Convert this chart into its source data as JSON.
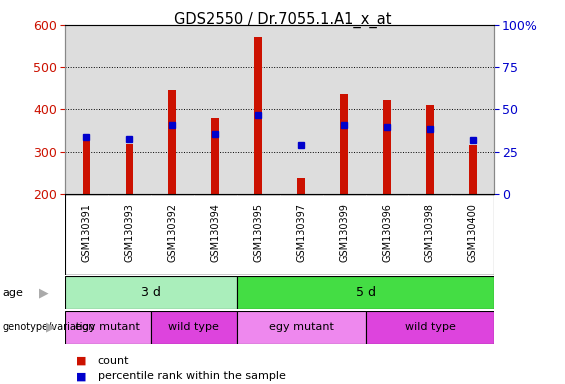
{
  "title": "GDS2550 / Dr.7055.1.A1_x_at",
  "samples": [
    "GSM130391",
    "GSM130393",
    "GSM130392",
    "GSM130394",
    "GSM130395",
    "GSM130397",
    "GSM130399",
    "GSM130396",
    "GSM130398",
    "GSM130400"
  ],
  "counts": [
    325,
    318,
    447,
    380,
    572,
    237,
    437,
    422,
    410,
    316
  ],
  "percentile_ranks": [
    335,
    330,
    362,
    342,
    388,
    316,
    362,
    358,
    354,
    328
  ],
  "y_min": 200,
  "y_max": 600,
  "y_ticks": [
    200,
    300,
    400,
    500,
    600
  ],
  "right_y_labels": [
    "0",
    "25",
    "50",
    "75",
    "100%"
  ],
  "bar_color": "#cc1100",
  "dot_color": "#0000cc",
  "age_groups": [
    {
      "label": "3 d",
      "start": 0,
      "end": 4,
      "color": "#aaeebb"
    },
    {
      "label": "5 d",
      "start": 4,
      "end": 10,
      "color": "#44dd44"
    }
  ],
  "genotype_groups": [
    {
      "label": "egy mutant",
      "start": 0,
      "end": 2,
      "color": "#ee88ee"
    },
    {
      "label": "wild type",
      "start": 2,
      "end": 4,
      "color": "#dd44dd"
    },
    {
      "label": "egy mutant",
      "start": 4,
      "end": 7,
      "color": "#ee88ee"
    },
    {
      "label": "wild type",
      "start": 7,
      "end": 10,
      "color": "#dd44dd"
    }
  ],
  "legend_count_color": "#cc1100",
  "legend_dot_color": "#0000cc",
  "tick_label_color_left": "#cc1100",
  "tick_label_color_right": "#0000cc",
  "background_color": "#ffffff",
  "panel_bg": "#dddddd",
  "xtick_bg": "#cccccc",
  "bar_width": 0.18
}
